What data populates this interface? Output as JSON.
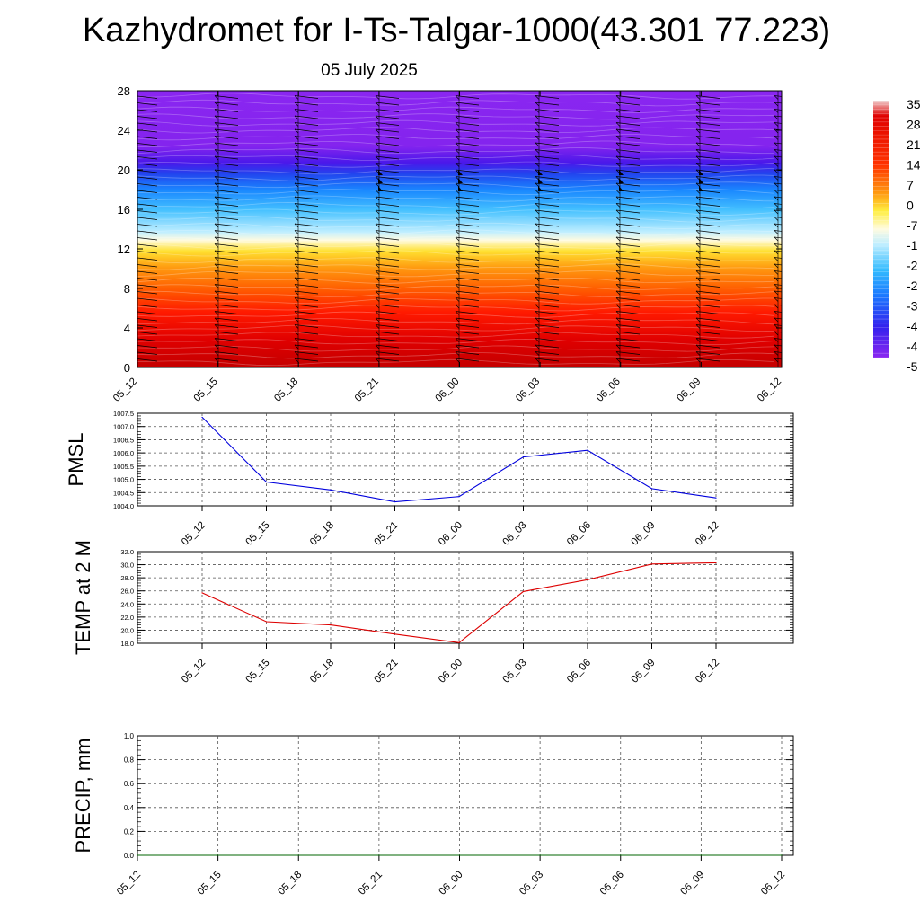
{
  "title": "Kazhydromet for I-Ts-Talgar-1000(43.301 77.223)",
  "subtitle": "05 July 2025",
  "chart_data": [
    {
      "type": "heatmap",
      "name": "temperature-height-section",
      "x_ticks": [
        "05_12",
        "05_15",
        "05_18",
        "05_21",
        "06_00",
        "06_03",
        "06_06",
        "06_09",
        "06_12"
      ],
      "y_ticks": [
        0,
        4,
        8,
        12,
        16,
        20,
        24,
        28
      ],
      "ylim": [
        0,
        28
      ],
      "colorbar_labels": [
        "35",
        "28",
        "21",
        "14",
        "7",
        "0",
        "-7",
        "-1",
        "-2",
        "-2",
        "-3",
        "-4",
        "-4",
        "-5"
      ],
      "colors": {
        "hot": "#cc0000",
        "warm": "#ff3300",
        "orange": "#ff9900",
        "yellow": "#ffee33",
        "white": "#f4fbff",
        "lightblue": "#66ccff",
        "blue": "#1166ff",
        "deepblue": "#3311ee",
        "violet": "#8822ee"
      },
      "wind_barbs": "shown"
    },
    {
      "type": "line",
      "ylabel": "PMSL",
      "x_ticks": [
        "05_12",
        "05_15",
        "05_18",
        "05_21",
        "06_00",
        "06_03",
        "06_06",
        "06_09",
        "06_12"
      ],
      "y_ticks": [
        "1004.0",
        "1004.5",
        "1005.0",
        "1005.5",
        "1006.0",
        "1006.5",
        "1007.0",
        "1007.5"
      ],
      "ylim": [
        1004.0,
        1007.5
      ],
      "series": [
        {
          "values": [
            1007.35,
            1004.9,
            1004.6,
            1004.15,
            1004.35,
            1005.85,
            1006.1,
            1004.65,
            1004.3
          ],
          "color": "#0000dd"
        }
      ]
    },
    {
      "type": "line",
      "ylabel": "TEMP at 2 M",
      "x_ticks": [
        "05_12",
        "05_15",
        "05_18",
        "05_21",
        "06_00",
        "06_03",
        "06_06",
        "06_09",
        "06_12"
      ],
      "y_ticks": [
        "18.0",
        "20.0",
        "22.0",
        "24.0",
        "26.0",
        "28.0",
        "30.0",
        "32.0"
      ],
      "ylim": [
        18.0,
        32.0
      ],
      "series": [
        {
          "values": [
            25.7,
            21.3,
            20.8,
            19.4,
            18.1,
            25.9,
            27.7,
            30.1,
            30.3
          ],
          "color": "#dd0000"
        }
      ]
    },
    {
      "type": "line",
      "ylabel": "PRECIP, mm",
      "x_ticks": [
        "05_12",
        "05_15",
        "05_18",
        "05_21",
        "06_00",
        "06_03",
        "06_06",
        "06_09",
        "06_12"
      ],
      "y_ticks": [
        "0.0",
        "0.2",
        "0.4",
        "0.6",
        "0.8",
        "1.0"
      ],
      "ylim": [
        0.0,
        1.0
      ],
      "series": [
        {
          "values": [
            0,
            0,
            0,
            0,
            0,
            0,
            0,
            0,
            0
          ],
          "color": "#006600"
        }
      ]
    }
  ]
}
